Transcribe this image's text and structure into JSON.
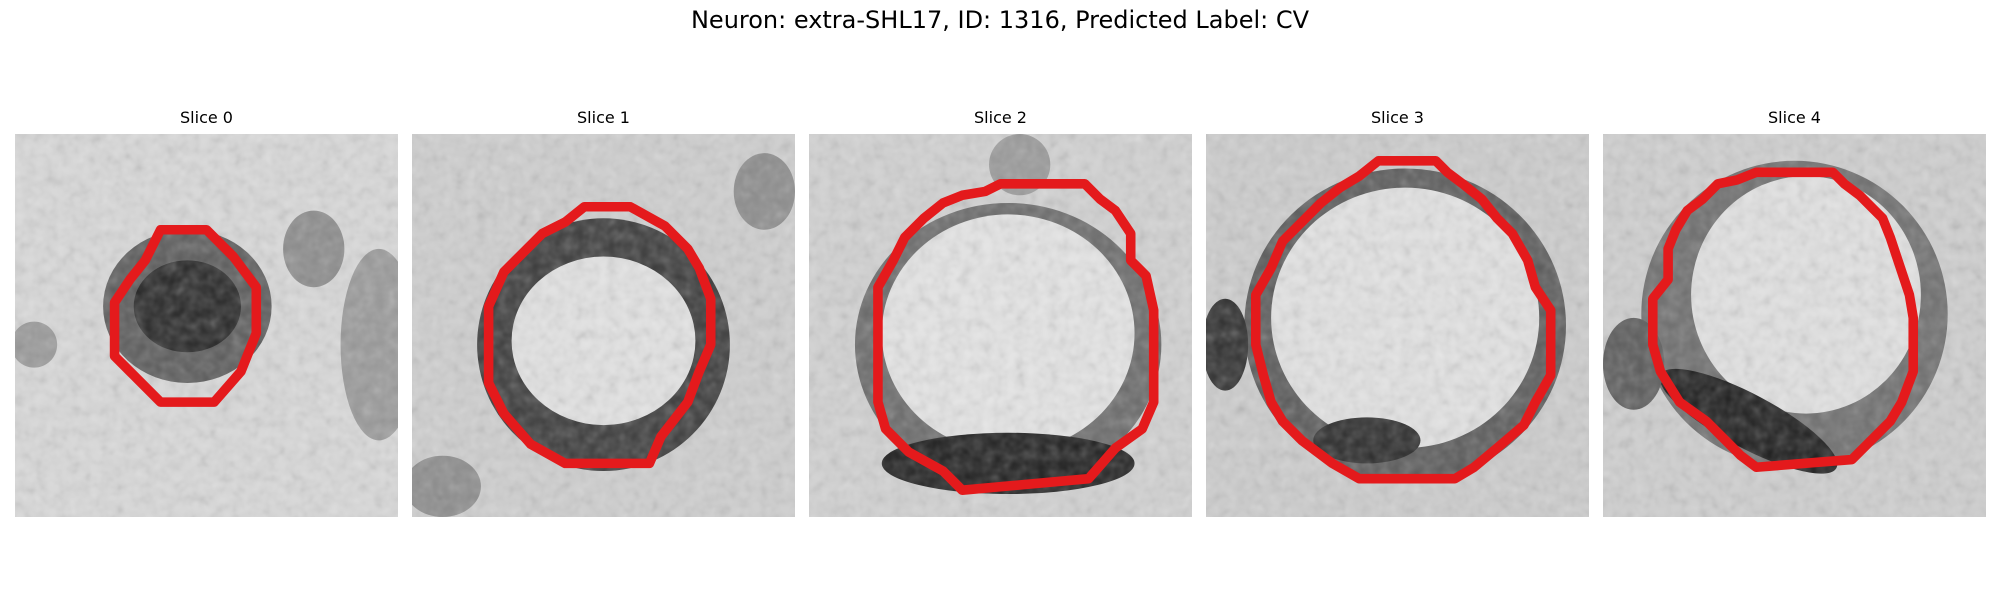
{
  "figure": {
    "title": "Neuron: extra-SHL17, ID: 1316, Predicted Label: CV"
  },
  "panels": [
    {
      "title": "Slice 0"
    },
    {
      "title": "Slice 1"
    },
    {
      "title": "Slice 2"
    },
    {
      "title": "Slice 3"
    },
    {
      "title": "Slice 4"
    }
  ],
  "colors": {
    "contour": "#e41a1c",
    "background_gray_light": "#dcdcdc",
    "membrane_dark": "#1a1a1a"
  }
}
